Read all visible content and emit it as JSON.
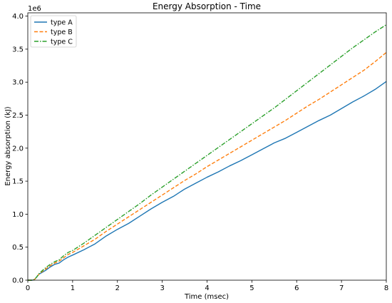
{
  "chart_data": {
    "type": "line",
    "title": "Energy Absorption - Time",
    "xlabel": "Time (msec)",
    "ylabel": "Energy absorption (kJ)",
    "y_offset_label": "1e6",
    "xlim": [
      0,
      8
    ],
    "ylim": [
      0,
      4.05
    ],
    "xticks": [
      0,
      1,
      2,
      3,
      4,
      5,
      6,
      7,
      8
    ],
    "xtick_labels": [
      "0",
      "1",
      "2",
      "3",
      "4",
      "5",
      "6",
      "7",
      "8"
    ],
    "yticks": [
      0,
      0.5,
      1.0,
      1.5,
      2.0,
      2.5,
      3.0,
      3.5,
      4.0
    ],
    "ytick_labels": [
      "0.0",
      "0.5",
      "1.0",
      "1.5",
      "2.0",
      "2.5",
      "3.0",
      "3.5",
      "4.0"
    ],
    "grid": false,
    "legend_position": "top-left",
    "x": [
      0,
      0.1,
      0.15,
      0.2,
      0.25,
      0.3,
      0.4,
      0.5,
      0.6,
      0.7,
      0.8,
      0.9,
      1.0,
      1.25,
      1.5,
      1.75,
      2.0,
      2.25,
      2.5,
      2.75,
      3.0,
      3.25,
      3.5,
      3.75,
      4.0,
      4.25,
      4.5,
      4.75,
      5.0,
      5.25,
      5.5,
      5.75,
      6.0,
      6.25,
      6.5,
      6.75,
      7.0,
      7.25,
      7.5,
      7.75,
      8.0
    ],
    "series": [
      {
        "name": "type A",
        "color": "#1f77b4",
        "dash": "solid",
        "values": [
          0,
          0,
          0.01,
          0.05,
          0.09,
          0.11,
          0.15,
          0.2,
          0.24,
          0.26,
          0.31,
          0.35,
          0.38,
          0.46,
          0.55,
          0.67,
          0.77,
          0.86,
          0.97,
          1.08,
          1.18,
          1.27,
          1.38,
          1.47,
          1.56,
          1.64,
          1.73,
          1.81,
          1.9,
          1.99,
          2.08,
          2.15,
          2.24,
          2.33,
          2.42,
          2.5,
          2.6,
          2.7,
          2.79,
          2.89,
          3.01
        ]
      },
      {
        "name": "type B",
        "color": "#ff7f0e",
        "dash": "dashed",
        "values": [
          0,
          0,
          0.01,
          0.05,
          0.09,
          0.12,
          0.17,
          0.22,
          0.26,
          0.29,
          0.34,
          0.39,
          0.42,
          0.52,
          0.62,
          0.74,
          0.85,
          0.96,
          1.07,
          1.18,
          1.29,
          1.4,
          1.51,
          1.61,
          1.72,
          1.82,
          1.92,
          2.02,
          2.12,
          2.22,
          2.32,
          2.42,
          2.53,
          2.64,
          2.74,
          2.85,
          2.96,
          3.07,
          3.18,
          3.31,
          3.45
        ]
      },
      {
        "name": "type C",
        "color": "#2ca02c",
        "dash": "dashdot",
        "values": [
          0,
          0,
          0.01,
          0.05,
          0.1,
          0.13,
          0.19,
          0.24,
          0.28,
          0.31,
          0.37,
          0.42,
          0.45,
          0.56,
          0.68,
          0.8,
          0.92,
          1.04,
          1.16,
          1.29,
          1.41,
          1.53,
          1.65,
          1.77,
          1.89,
          2.01,
          2.13,
          2.25,
          2.37,
          2.49,
          2.61,
          2.74,
          2.87,
          3.0,
          3.13,
          3.26,
          3.39,
          3.52,
          3.64,
          3.76,
          3.87
        ]
      }
    ]
  }
}
